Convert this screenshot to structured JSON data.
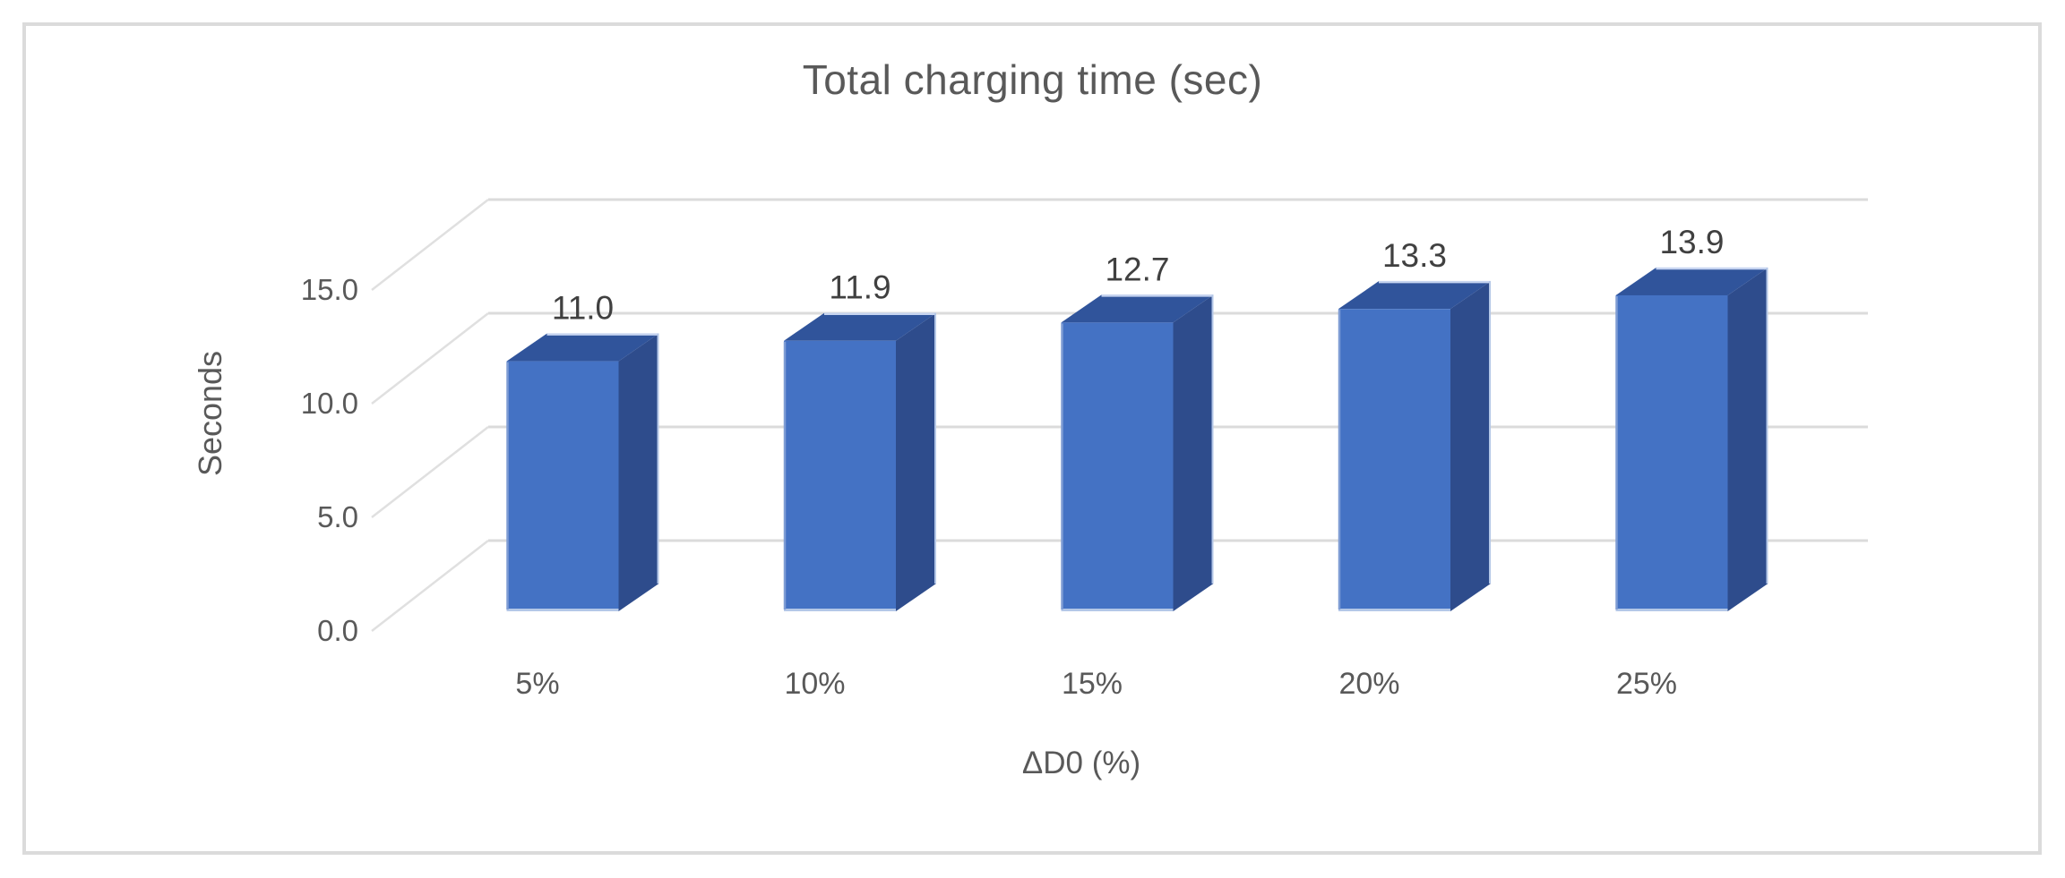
{
  "frame": {
    "border_color": "#DBDBDB",
    "background": "#FFFFFF"
  },
  "chart_data": {
    "type": "bar",
    "subtype": "3d-column",
    "title": "Total charging time (sec)",
    "categories": [
      "5%",
      "10%",
      "15%",
      "20%",
      "25%"
    ],
    "values": [
      11.0,
      11.9,
      12.7,
      13.3,
      13.9
    ],
    "data_labels": [
      "11.0",
      "11.9",
      "12.7",
      "13.3",
      "13.9"
    ],
    "xlabel": "ΔD0 (%)",
    "ylabel": "Seconds",
    "yticks": [
      0,
      5,
      10,
      15
    ],
    "ytick_labels": [
      "0.0",
      "5.0",
      "10.0",
      "15.0"
    ],
    "ylim": [
      0,
      15
    ],
    "grid": true,
    "legend": "none",
    "colors": {
      "bar_front": "#4472C4",
      "bar_side": "#2E4C8C",
      "bar_top": "#30549B",
      "bar_bevel_light": "#B4C7E7",
      "bar_bevel_back": "#C6D4F0",
      "bar_bevel_left": "#7E9CD4",
      "gridline": "#DBDBDB",
      "depth_line": "#E0E0E0",
      "axis_text": "#595959",
      "data_label_text": "#404040"
    }
  }
}
